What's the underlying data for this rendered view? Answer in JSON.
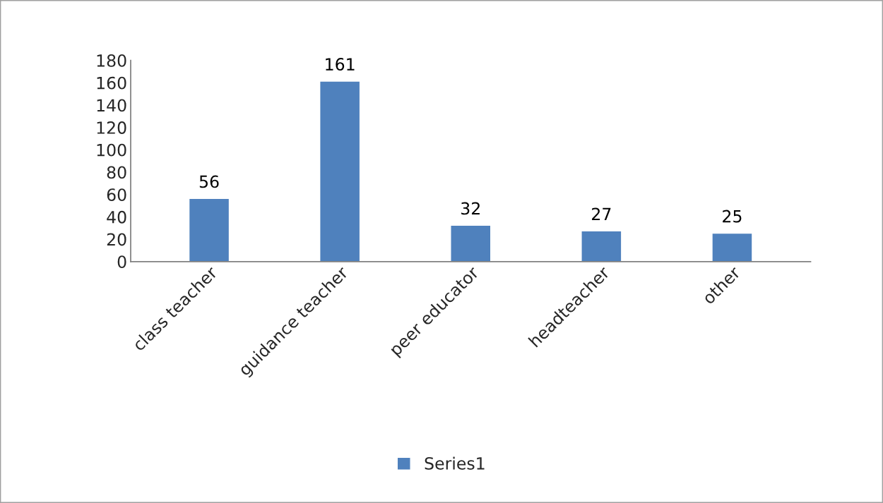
{
  "chart_data": {
    "type": "bar",
    "categories": [
      "class teacher",
      "guidance teacher",
      "peer educator",
      "headteacher",
      "other"
    ],
    "series": [
      {
        "name": "Series1",
        "color": "#4f81bd",
        "values": [
          56,
          161,
          32,
          27,
          25
        ]
      }
    ],
    "ylim": [
      0,
      180
    ],
    "yticks": [
      0,
      20,
      40,
      60,
      80,
      100,
      120,
      140,
      160,
      180
    ],
    "data_labels": true,
    "grid": false,
    "legend": "bottom"
  }
}
